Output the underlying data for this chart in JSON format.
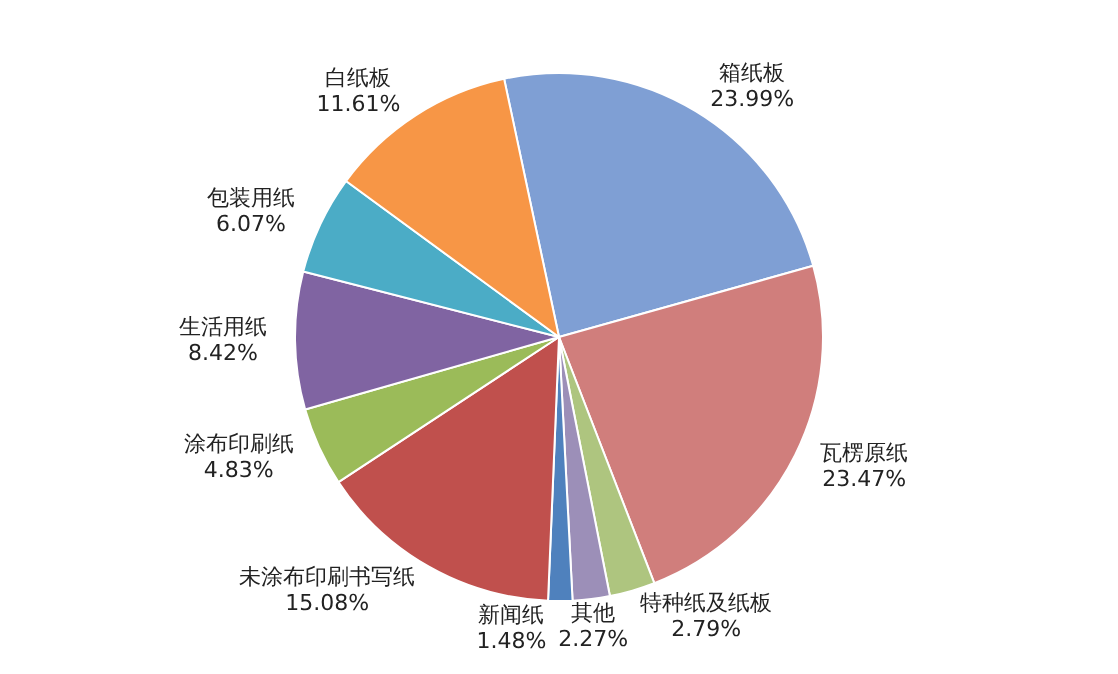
{
  "chart_data": {
    "type": "pie",
    "categories": [
      "箱纸板",
      "瓦楞原纸",
      "特种纸及纸板",
      "其他",
      "新闻纸",
      "未涂布印刷书写纸",
      "涂布印刷纸",
      "生活用纸",
      "包装用纸",
      "白纸板"
    ],
    "values": [
      23.99,
      23.47,
      2.79,
      2.27,
      1.48,
      15.08,
      4.83,
      8.42,
      6.07,
      11.61
    ],
    "value_labels": [
      "23.99%",
      "23.47%",
      "2.79%",
      "2.27%",
      "1.48%",
      "15.08%",
      "4.83%",
      "8.42%",
      "6.07%",
      "11.61%"
    ],
    "colors": [
      "#7f9fd4",
      "#d07e7c",
      "#aec57f",
      "#9c8fb8",
      "#4f81bd",
      "#c0504d",
      "#9bbb59",
      "#8064a2",
      "#4bacc6",
      "#f79646"
    ],
    "legend": false
  }
}
